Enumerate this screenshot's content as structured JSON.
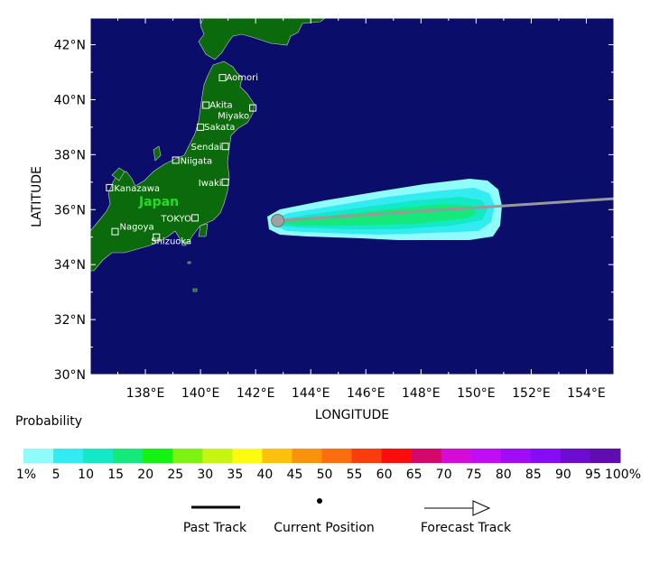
{
  "map": {
    "xlabel": "LONGITUDE",
    "ylabel": "LATITUDE",
    "lon_ticks": [
      "138°E",
      "140°E",
      "142°E",
      "144°E",
      "146°E",
      "148°E",
      "150°E",
      "152°E",
      "154°E"
    ],
    "lat_ticks": [
      "42°N",
      "40°N",
      "38°N",
      "36°N",
      "34°N",
      "32°N",
      "30°N"
    ],
    "country_label": "Japan",
    "cities": [
      {
        "name": "Aomori",
        "lon": 140.8,
        "lat": 40.8
      },
      {
        "name": "Akita",
        "lon": 140.2,
        "lat": 39.8
      },
      {
        "name": "Miyako",
        "lon": 141.9,
        "lat": 39.7
      },
      {
        "name": "Sakata",
        "lon": 140.0,
        "lat": 39.0
      },
      {
        "name": "Sendai",
        "lon": 140.9,
        "lat": 38.3
      },
      {
        "name": "Niigata",
        "lon": 139.1,
        "lat": 37.8
      },
      {
        "name": "Iwaki",
        "lon": 140.9,
        "lat": 37.0
      },
      {
        "name": "Kanazawa",
        "lon": 136.7,
        "lat": 36.8
      },
      {
        "name": "TOKYO",
        "lon": 139.8,
        "lat": 35.7
      },
      {
        "name": "Nagoya",
        "lon": 136.9,
        "lat": 35.2
      },
      {
        "name": "Shizuoka",
        "lon": 138.4,
        "lat": 35.0
      }
    ],
    "current_position": {
      "lon": 142.8,
      "lat": 35.6
    },
    "forecast_track_end": {
      "lon": 155.0,
      "lat": 36.4
    },
    "colors": {
      "ocean": "#0b0d6b",
      "land": "#0b6a0b",
      "track": "#999999"
    }
  },
  "legend": {
    "title": "Probability",
    "labels": [
      "1%",
      "5",
      "10",
      "15",
      "20",
      "25",
      "30",
      "35",
      "40",
      "45",
      "50",
      "55",
      "60",
      "65",
      "70",
      "75",
      "80",
      "85",
      "90",
      "95",
      "100%"
    ],
    "colors": [
      "#8ffbfb",
      "#33ecf2",
      "#13e9c6",
      "#14e97a",
      "#13f211",
      "#7ef313",
      "#c6f511",
      "#fefb11",
      "#fbc10d",
      "#fb920e",
      "#fb6d0f",
      "#fb3d0d",
      "#fb0d0d",
      "#d6076a",
      "#d40cd6",
      "#c10cf6",
      "#9f0cf5",
      "#860cf5",
      "#6c0cd0",
      "#5f0cb2"
    ],
    "past_track": "Past Track",
    "current_position": "Current Position",
    "forecast_track": "Forecast Track"
  }
}
